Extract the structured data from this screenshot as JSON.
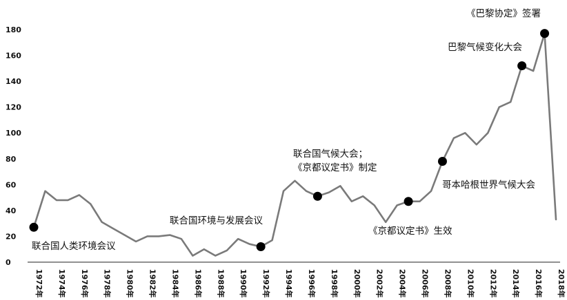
{
  "chart_data": {
    "type": "line",
    "title": "",
    "xlabel": "",
    "ylabel": "",
    "ylim": [
      0,
      180
    ],
    "yticks": [
      0,
      20,
      40,
      60,
      80,
      100,
      120,
      140,
      160,
      180
    ],
    "grid": false,
    "legend": "none",
    "x_tick_labels": [
      "1972年",
      "1974年",
      "1976年",
      "1978年",
      "1980年",
      "1982年",
      "1984年",
      "1986年",
      "1988年",
      "1990年",
      "1992年",
      "1994年",
      "1996年",
      "1998年",
      "2000年",
      "2002年",
      "2004年",
      "2006年",
      "2008年",
      "2010年",
      "2012年",
      "2014年",
      "2016年",
      "2018年"
    ],
    "series": [
      {
        "name": "",
        "color": "#7a7a7a",
        "x": [
          1972,
          1973,
          1974,
          1975,
          1976,
          1977,
          1978,
          1979,
          1980,
          1981,
          1982,
          1983,
          1984,
          1985,
          1986,
          1987,
          1988,
          1989,
          1990,
          1991,
          1992,
          1993,
          1994,
          1995,
          1996,
          1997,
          1998,
          1999,
          2000,
          2001,
          2002,
          2003,
          2004,
          2005,
          2006,
          2007,
          2008,
          2009,
          2010,
          2011,
          2012,
          2013,
          2014,
          2015,
          2016,
          2017,
          2018
        ],
        "values": [
          27,
          55,
          48,
          48,
          52,
          45,
          31,
          26,
          21,
          16,
          20,
          20,
          21,
          18,
          5,
          10,
          5,
          9,
          18,
          14,
          12,
          17,
          55,
          63,
          55,
          51,
          54,
          59,
          47,
          51,
          44,
          31,
          44,
          47,
          47,
          55,
          78,
          96,
          100,
          91,
          100,
          120,
          124,
          152,
          148,
          177,
          33
        ]
      }
    ],
    "markers": [
      {
        "x": 1972,
        "y": 27
      },
      {
        "x": 1992,
        "y": 12
      },
      {
        "x": 1997,
        "y": 51
      },
      {
        "x": 2005,
        "y": 47
      },
      {
        "x": 2008,
        "y": 78
      },
      {
        "x": 2015,
        "y": 152
      },
      {
        "x": 2017,
        "y": 177
      }
    ],
    "annotations": [
      {
        "id": "ann-1972",
        "text": "联合国人类环境会议"
      },
      {
        "id": "ann-1992",
        "text": "联合国环境与发展会议"
      },
      {
        "id": "ann-1997-a",
        "text": "联合国气候大会；"
      },
      {
        "id": "ann-1997-b",
        "text": "《京都议定书》制定"
      },
      {
        "id": "ann-2005",
        "text": "《京都议定书》生效"
      },
      {
        "id": "ann-2009",
        "text": "哥本哈根世界气候大会"
      },
      {
        "id": "ann-2015",
        "text": "巴黎气候变化大会"
      },
      {
        "id": "ann-2016",
        "text": "《巴黎协定》签署"
      }
    ]
  }
}
